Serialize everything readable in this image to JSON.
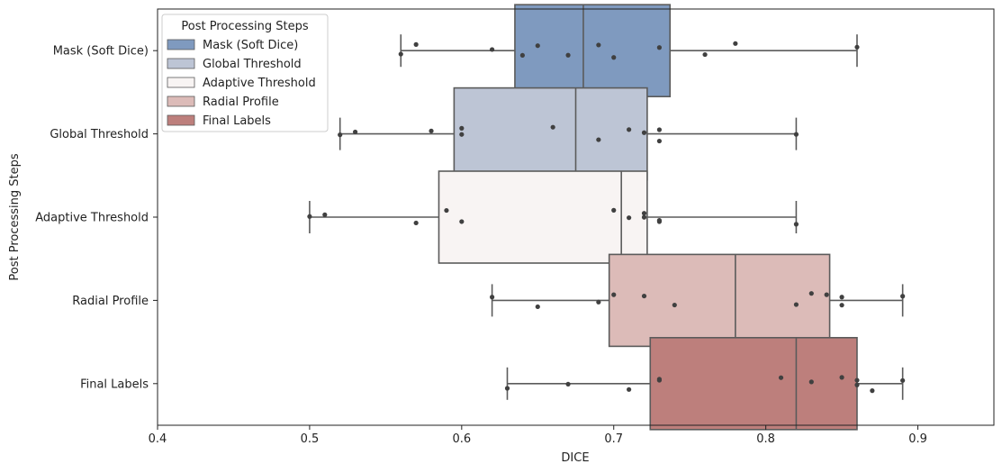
{
  "chart_data": {
    "type": "box",
    "orientation": "horizontal",
    "xlabel": "DICE",
    "ylabel": "Post Processing Steps",
    "xlim": [
      0.4,
      0.95
    ],
    "xticks": [
      0.4,
      0.5,
      0.6,
      0.7,
      0.8,
      0.9
    ],
    "xtick_labels": [
      "0.4",
      "0.5",
      "0.6",
      "0.7",
      "0.8",
      "0.9"
    ],
    "grid": false,
    "legend": {
      "title": "Post Processing Steps",
      "placement": "top-left",
      "entries": [
        "Mask (Soft Dice)",
        "Global Threshold",
        "Adaptive Threshold",
        "Radial Profile",
        "Final Labels"
      ]
    },
    "series": [
      {
        "name": "Mask (Soft Dice)",
        "color": "#7f9abf",
        "whisker_low": 0.56,
        "q1": 0.635,
        "median": 0.68,
        "q3": 0.737,
        "whisker_high": 0.86,
        "points": [
          0.56,
          0.57,
          0.62,
          0.64,
          0.65,
          0.67,
          0.69,
          0.7,
          0.73,
          0.76,
          0.78,
          0.86
        ]
      },
      {
        "name": "Global Threshold",
        "color": "#bdc5d5",
        "whisker_low": 0.52,
        "q1": 0.595,
        "median": 0.675,
        "q3": 0.722,
        "whisker_high": 0.82,
        "points": [
          0.52,
          0.53,
          0.58,
          0.6,
          0.6,
          0.66,
          0.69,
          0.71,
          0.72,
          0.73,
          0.73,
          0.82
        ]
      },
      {
        "name": "Adaptive Threshold",
        "color": "#f8f4f3",
        "whisker_low": 0.5,
        "q1": 0.585,
        "median": 0.705,
        "q3": 0.722,
        "whisker_high": 0.82,
        "points": [
          0.5,
          0.51,
          0.57,
          0.59,
          0.6,
          0.7,
          0.71,
          0.72,
          0.72,
          0.73,
          0.73,
          0.82
        ]
      },
      {
        "name": "Radial Profile",
        "color": "#dcbbb8",
        "whisker_low": 0.62,
        "q1": 0.697,
        "median": 0.78,
        "q3": 0.842,
        "whisker_high": 0.89,
        "points": [
          0.62,
          0.65,
          0.69,
          0.7,
          0.72,
          0.74,
          0.82,
          0.83,
          0.84,
          0.85,
          0.85,
          0.89
        ]
      },
      {
        "name": "Final Labels",
        "color": "#bd7f7c",
        "whisker_low": 0.63,
        "q1": 0.724,
        "median": 0.82,
        "q3": 0.86,
        "whisker_high": 0.89,
        "points": [
          0.63,
          0.67,
          0.71,
          0.73,
          0.73,
          0.81,
          0.83,
          0.85,
          0.86,
          0.86,
          0.87,
          0.89
        ]
      }
    ]
  }
}
